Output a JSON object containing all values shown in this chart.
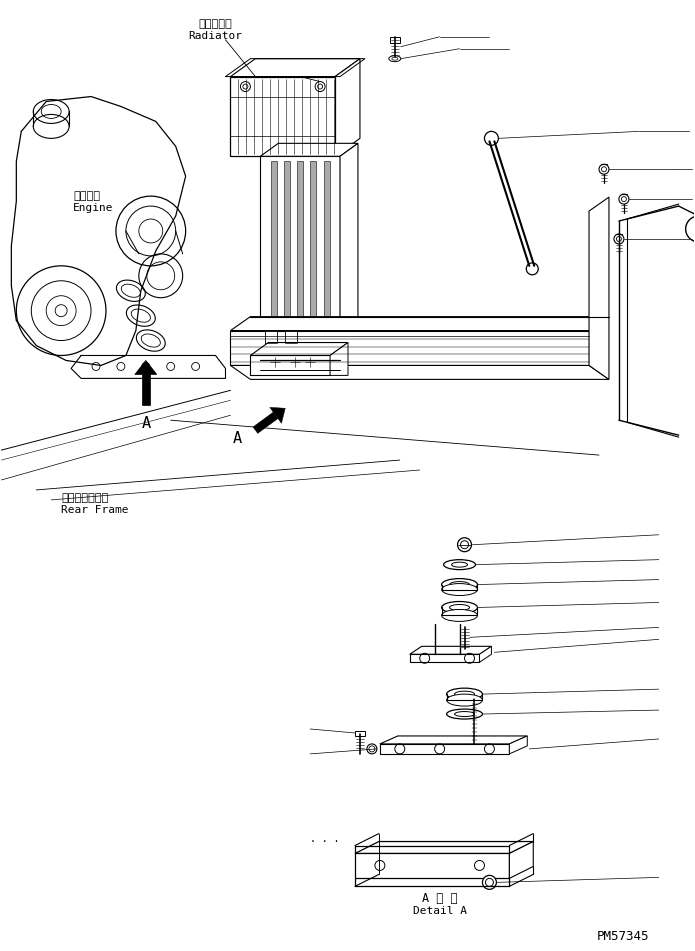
{
  "background_color": "#ffffff",
  "line_color": "#000000",
  "title_bottom_jp": "A 詳 細",
  "title_bottom_en": "Detail A",
  "label_radiator_jp": "ラジエータ",
  "label_radiator_en": "Radiator",
  "label_engine_jp": "エンジン",
  "label_engine_en": "Engine",
  "label_rear_frame_jp": "リヤーフレーム",
  "label_rear_frame_en": "Rear Frame",
  "label_part_number": "PM57345",
  "fig_width": 6.95,
  "fig_height": 9.51,
  "dpi": 100
}
